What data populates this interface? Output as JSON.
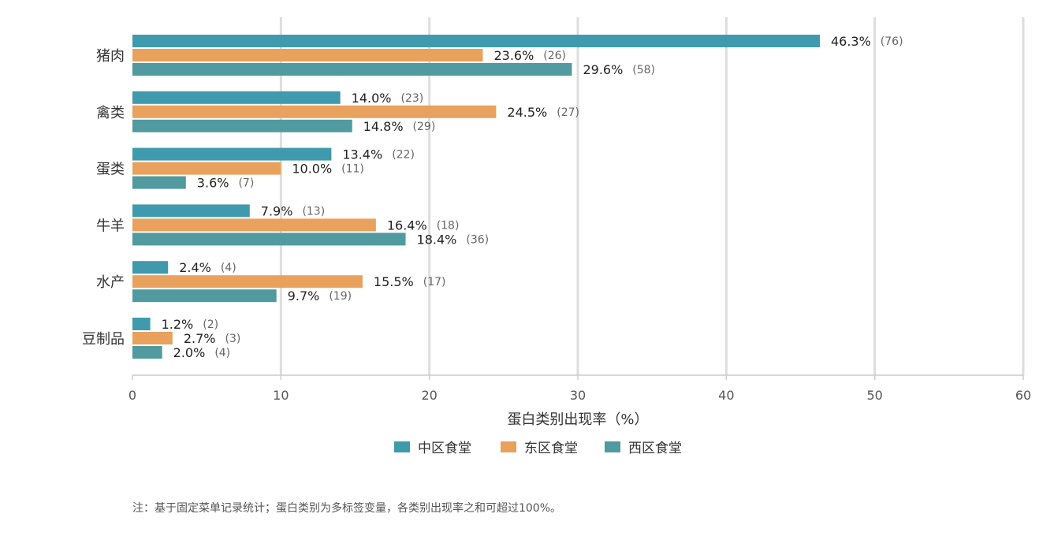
{
  "chart_data": {
    "type": "bar",
    "orientation": "horizontal",
    "categories": [
      "猪肉",
      "禽类",
      "蛋类",
      "牛羊",
      "水产",
      "豆制品"
    ],
    "series": [
      {
        "name": "中区食堂",
        "color": "#3f9aad",
        "values": [
          46.3,
          14.0,
          13.4,
          7.9,
          2.4,
          1.2
        ],
        "value_labels": [
          "46.3%",
          "14.0%",
          "13.4%",
          "7.9%",
          "2.4%",
          "1.2%"
        ],
        "count_labels": [
          "(76)",
          "(23)",
          "(22)",
          "(13)",
          "(4)",
          "(2)"
        ]
      },
      {
        "name": "东区食堂",
        "color": "#e9a15e",
        "values": [
          23.6,
          24.5,
          10.0,
          16.4,
          15.5,
          2.7
        ],
        "value_labels": [
          "23.6%",
          "24.5%",
          "10.0%",
          "16.4%",
          "15.5%",
          "2.7%"
        ],
        "count_labels": [
          "(26)",
          "(27)",
          "(11)",
          "(18)",
          "(17)",
          "(3)"
        ]
      },
      {
        "name": "西区食堂",
        "color": "#509aa0",
        "values": [
          29.6,
          14.8,
          3.6,
          18.4,
          9.7,
          2.0
        ],
        "value_labels": [
          "29.6%",
          "14.8%",
          "3.6%",
          "18.4%",
          "9.7%",
          "2.0%"
        ],
        "count_labels": [
          "(58)",
          "(29)",
          "(7)",
          "(36)",
          "(19)",
          "(4)"
        ]
      }
    ],
    "xlabel": "蛋白类别出现率（%）",
    "ylabel": "",
    "xlim": [
      0,
      60
    ],
    "xticks": [
      0,
      10,
      20,
      30,
      40,
      50,
      60
    ],
    "xtick_labels": [
      "0",
      "10",
      "20",
      "30",
      "40",
      "50",
      "60"
    ],
    "grid": "vertical",
    "legend_position": "bottom-center"
  },
  "note": "注：基于固定菜单记录统计；蛋白类别为多标签变量，各类别出现率之和可超过100%。"
}
